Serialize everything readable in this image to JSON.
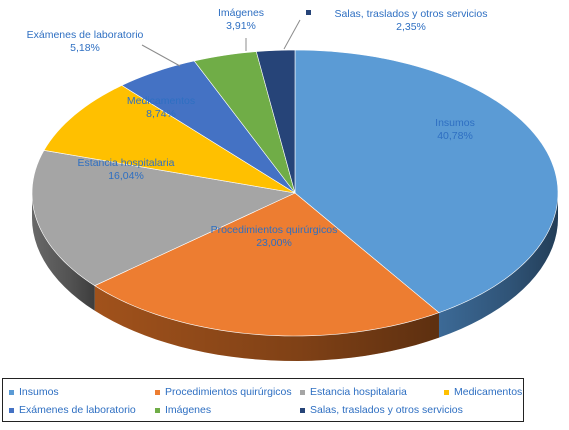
{
  "chart_data": {
    "type": "pie",
    "title": "",
    "series": [
      {
        "name": "Insumos",
        "value": 40.78,
        "label": "40,78%",
        "color": "#5b9bd5",
        "side_color": "#3f6f9e"
      },
      {
        "name": "Procedimientos quirúrgicos",
        "value": 23.0,
        "label": "23,00%",
        "color": "#ed7d31",
        "side_color": "#a9561d"
      },
      {
        "name": "Estancia hospitalaria",
        "value": 16.04,
        "label": "16,04%",
        "color": "#a5a5a5",
        "side_color": "#6e6e6e"
      },
      {
        "name": "Medicamentos",
        "value": 8.74,
        "label": "8,74%",
        "color": "#ffc000",
        "side_color": "#b58800"
      },
      {
        "name": "Exámenes de laboratorio",
        "value": 5.18,
        "label": "5,18%",
        "color": "#4472c4",
        "side_color": "#2c4f8a"
      },
      {
        "name": "Imágenes",
        "value": 3.91,
        "label": "3,91%",
        "color": "#70ad47",
        "side_color": "#4c7a2f"
      },
      {
        "name": "Salas, traslados y otros servicios",
        "value": 2.35,
        "label": "2,35%",
        "color": "#264478",
        "side_color": "#172b4d"
      }
    ],
    "legend_position": "bottom",
    "style": "3d-pie"
  },
  "legend": {
    "items": [
      "Insumos",
      "Procedimientos quirúrgicos",
      "Estancia hospitalaria",
      "Medicamentos",
      "Exámenes de laboratorio",
      "Imágenes",
      "Salas, traslados y otros servicios"
    ]
  }
}
